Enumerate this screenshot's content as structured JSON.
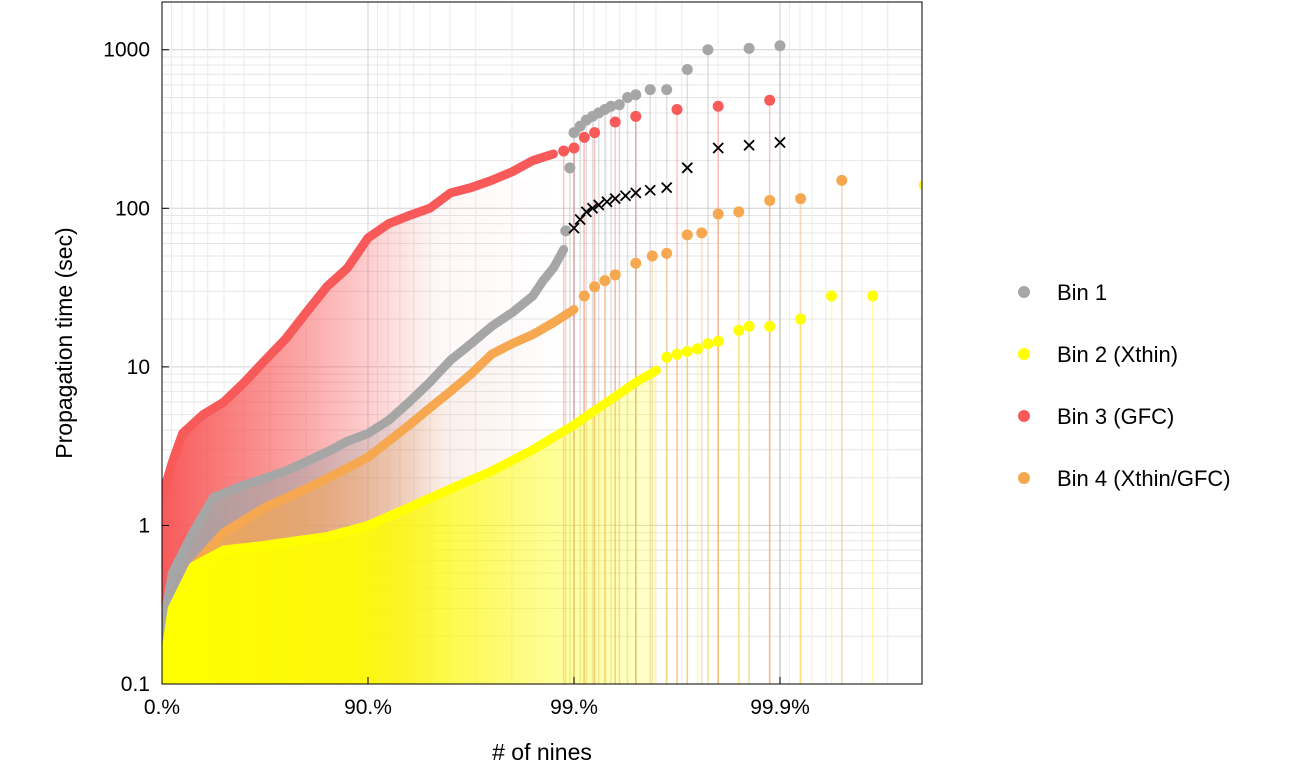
{
  "chart_data": {
    "type": "scatter",
    "xlabel": "# of nines",
    "ylabel": "Propagation time (sec)",
    "x_scale": "nines",
    "y_scale": "log",
    "xlim": [
      0,
      3.45
    ],
    "ylim": [
      0.1,
      2000
    ],
    "x_ticks": [
      {
        "value": 0,
        "label": "0.%"
      },
      {
        "value": 1,
        "label": "90.%"
      },
      {
        "value": 2,
        "label": "99.%"
      },
      {
        "value": 3,
        "label": "99.9%"
      }
    ],
    "y_ticks": [
      {
        "value": 0.1,
        "label": "0.1"
      },
      {
        "value": 1,
        "label": "1"
      },
      {
        "value": 10,
        "label": "10"
      },
      {
        "value": 100,
        "label": "100"
      },
      {
        "value": 1000,
        "label": "1000"
      }
    ],
    "grid": true,
    "legend_position": "right",
    "series": [
      {
        "name": "Bin 1",
        "color": "#a6a6a6",
        "marker": "circle",
        "curve": [
          [
            0,
            0.2
          ],
          [
            0.05,
            0.5
          ],
          [
            0.15,
            0.9
          ],
          [
            0.25,
            1.5
          ],
          [
            0.4,
            1.8
          ],
          [
            0.6,
            2.2
          ],
          [
            0.8,
            2.9
          ],
          [
            0.9,
            3.4
          ],
          [
            1.0,
            3.8
          ],
          [
            1.1,
            4.6
          ],
          [
            1.2,
            6.0
          ],
          [
            1.3,
            8.0
          ],
          [
            1.4,
            11
          ],
          [
            1.5,
            14
          ],
          [
            1.6,
            18
          ],
          [
            1.7,
            22
          ],
          [
            1.8,
            28
          ],
          [
            1.85,
            35
          ],
          [
            1.9,
            42
          ],
          [
            1.95,
            55
          ]
        ],
        "points": [
          [
            1.96,
            72
          ],
          [
            1.98,
            180
          ],
          [
            2.0,
            300
          ],
          [
            2.03,
            330
          ],
          [
            2.06,
            360
          ],
          [
            2.09,
            380
          ],
          [
            2.12,
            400
          ],
          [
            2.15,
            420
          ],
          [
            2.18,
            440
          ],
          [
            2.22,
            450
          ],
          [
            2.26,
            500
          ],
          [
            2.3,
            520
          ],
          [
            2.37,
            560
          ],
          [
            2.45,
            560
          ],
          [
            2.55,
            750
          ],
          [
            2.65,
            1000
          ],
          [
            2.85,
            1020
          ],
          [
            3.0,
            1060
          ]
        ]
      },
      {
        "name": "Bin 2 (Xthin)",
        "color": "#ffff00",
        "marker": "circle",
        "curve": [
          [
            0,
            0.11
          ],
          [
            0.05,
            0.3
          ],
          [
            0.15,
            0.55
          ],
          [
            0.3,
            0.7
          ],
          [
            0.5,
            0.75
          ],
          [
            0.8,
            0.85
          ],
          [
            1.0,
            1.0
          ],
          [
            1.2,
            1.3
          ],
          [
            1.4,
            1.7
          ],
          [
            1.6,
            2.2
          ],
          [
            1.8,
            3.0
          ],
          [
            1.9,
            3.6
          ],
          [
            2.0,
            4.3
          ],
          [
            2.1,
            5.3
          ],
          [
            2.2,
            6.5
          ],
          [
            2.3,
            8.0
          ],
          [
            2.4,
            9.5
          ]
        ],
        "points": [
          [
            2.45,
            11.5
          ],
          [
            2.5,
            12
          ],
          [
            2.55,
            12.5
          ],
          [
            2.6,
            13
          ],
          [
            2.65,
            14
          ],
          [
            2.7,
            14.5
          ],
          [
            2.8,
            17
          ],
          [
            2.85,
            18
          ],
          [
            2.95,
            18
          ],
          [
            3.1,
            20
          ],
          [
            3.25,
            28
          ],
          [
            3.45,
            28
          ],
          [
            3.7,
            140
          ]
        ]
      },
      {
        "name": "Bin 3 (GFC)",
        "color": "#f85a5a",
        "marker": "circle",
        "curve": [
          [
            0,
            1.5
          ],
          [
            0.05,
            2.5
          ],
          [
            0.1,
            3.8
          ],
          [
            0.2,
            5
          ],
          [
            0.3,
            6
          ],
          [
            0.4,
            8
          ],
          [
            0.5,
            11
          ],
          [
            0.6,
            15
          ],
          [
            0.7,
            22
          ],
          [
            0.8,
            32
          ],
          [
            0.9,
            42
          ],
          [
            1.0,
            65
          ],
          [
            1.1,
            80
          ],
          [
            1.2,
            90
          ],
          [
            1.3,
            100
          ],
          [
            1.4,
            125
          ],
          [
            1.5,
            135
          ],
          [
            1.6,
            150
          ],
          [
            1.7,
            170
          ],
          [
            1.8,
            200
          ],
          [
            1.9,
            220
          ]
        ],
        "points": [
          [
            1.95,
            230
          ],
          [
            2.0,
            240
          ],
          [
            2.05,
            280
          ],
          [
            2.1,
            300
          ],
          [
            2.2,
            350
          ],
          [
            2.3,
            380
          ],
          [
            2.5,
            420
          ],
          [
            2.7,
            440
          ],
          [
            2.95,
            480
          ]
        ]
      },
      {
        "name": "Bin 4 (Xthin/GFC)",
        "color": "#f6a850",
        "marker": "circle",
        "curve": [
          [
            0,
            0.12
          ],
          [
            0.05,
            0.25
          ],
          [
            0.15,
            0.55
          ],
          [
            0.3,
            0.9
          ],
          [
            0.5,
            1.3
          ],
          [
            0.7,
            1.7
          ],
          [
            0.9,
            2.3
          ],
          [
            1.0,
            2.7
          ],
          [
            1.1,
            3.4
          ],
          [
            1.2,
            4.3
          ],
          [
            1.3,
            5.5
          ],
          [
            1.4,
            7
          ],
          [
            1.5,
            9
          ],
          [
            1.6,
            12
          ],
          [
            1.7,
            14
          ],
          [
            1.8,
            16
          ],
          [
            1.9,
            19
          ],
          [
            2.0,
            23
          ]
        ],
        "points": [
          [
            2.05,
            28
          ],
          [
            2.1,
            32
          ],
          [
            2.15,
            35
          ],
          [
            2.2,
            38
          ],
          [
            2.3,
            45
          ],
          [
            2.38,
            50
          ],
          [
            2.45,
            52
          ],
          [
            2.55,
            68
          ],
          [
            2.62,
            70
          ],
          [
            2.7,
            92
          ],
          [
            2.8,
            95
          ],
          [
            2.95,
            112
          ],
          [
            3.1,
            115
          ],
          [
            3.3,
            150
          ]
        ]
      },
      {
        "name": "",
        "color": "#000000",
        "marker": "x",
        "points": [
          [
            2.0,
            75
          ],
          [
            2.03,
            85
          ],
          [
            2.06,
            95
          ],
          [
            2.09,
            100
          ],
          [
            2.12,
            105
          ],
          [
            2.16,
            110
          ],
          [
            2.2,
            115
          ],
          [
            2.25,
            120
          ],
          [
            2.3,
            125
          ],
          [
            2.37,
            130
          ],
          [
            2.45,
            135
          ],
          [
            2.55,
            180
          ],
          [
            2.7,
            240
          ],
          [
            2.85,
            250
          ],
          [
            3.0,
            260
          ]
        ]
      }
    ]
  }
}
